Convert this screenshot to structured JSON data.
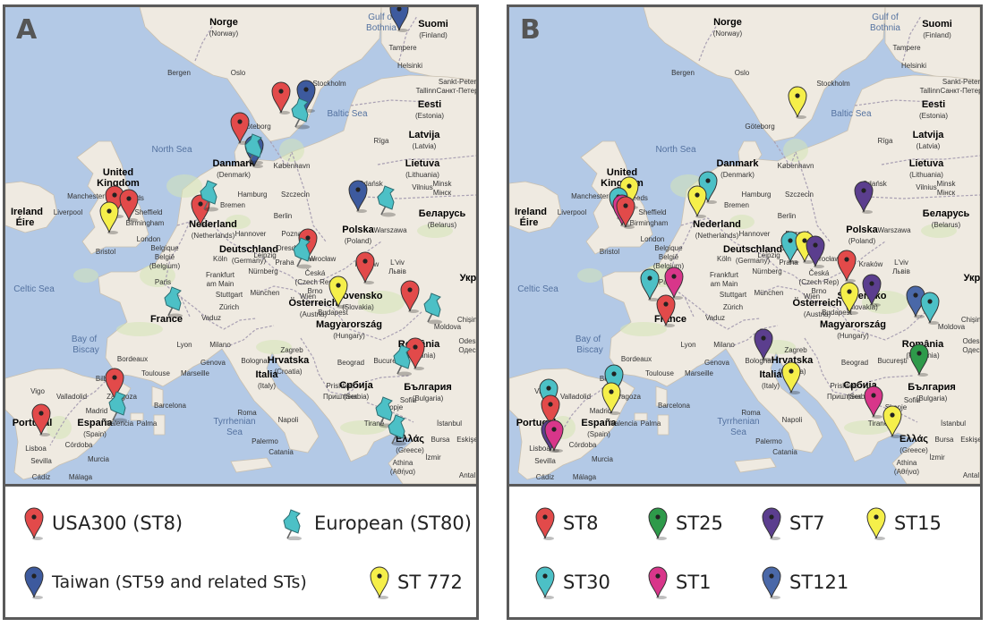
{
  "colors": {
    "sea": "#b3c9e6",
    "land": "#efeae1",
    "border": "#a9a0b3",
    "red": "#e24a4a",
    "blue": "#3d5a9e",
    "teal": "#4cc0c6",
    "yellow": "#f5ef4a",
    "green": "#2e9a4a",
    "purple": "#5b3e8e",
    "magenta": "#d8368a",
    "slate": "#4a68a8"
  },
  "map_labels": [
    {
      "t": "Norge"
    },
    {
      "t": "(Norway)"
    },
    {
      "t": "Gulf of"
    },
    {
      "t": "Bothnia"
    },
    {
      "t": "Suomi"
    },
    {
      "t": "(Finland)"
    },
    {
      "t": "Tampere"
    },
    {
      "t": "Helsinki"
    },
    {
      "t": "Bergen"
    },
    {
      "t": "Oslo"
    },
    {
      "t": "Stockholm"
    },
    {
      "t": "Tallinn"
    },
    {
      "t": "Sankt-Peter"
    },
    {
      "t": "Санкт-Петер"
    },
    {
      "t": "Eesti"
    },
    {
      "t": "(Estonia)"
    },
    {
      "t": "Göteborg"
    },
    {
      "t": "Baltic Sea"
    },
    {
      "t": "Rīga"
    },
    {
      "t": "Latvija"
    },
    {
      "t": "(Latvia)"
    },
    {
      "t": "North Sea"
    },
    {
      "t": "Danmark"
    },
    {
      "t": "(Denmark)"
    },
    {
      "t": "København"
    },
    {
      "t": "Lietuva"
    },
    {
      "t": "(Lithuania)"
    },
    {
      "t": "Vilnius"
    },
    {
      "t": "United"
    },
    {
      "t": "Kingdom"
    },
    {
      "t": "Gdańsk"
    },
    {
      "t": "Minsk"
    },
    {
      "t": "Мінск"
    },
    {
      "t": "Manchester"
    },
    {
      "t": "Leeds"
    },
    {
      "t": "Liverpool"
    },
    {
      "t": "Sheffield"
    },
    {
      "t": "Ireland"
    },
    {
      "t": "Éire"
    },
    {
      "t": "Birmingham"
    },
    {
      "t": "Bremen"
    },
    {
      "t": "Hamburg"
    },
    {
      "t": "Szczecin"
    },
    {
      "t": "Nederland"
    },
    {
      "t": "(Netherlands)"
    },
    {
      "t": "Berlin"
    },
    {
      "t": "Hannover"
    },
    {
      "t": "Poznań"
    },
    {
      "t": "Polska"
    },
    {
      "t": "(Poland)"
    },
    {
      "t": "Warszawa"
    },
    {
      "t": "Беларусь"
    },
    {
      "t": "(Belarus)"
    },
    {
      "t": "Bristol"
    },
    {
      "t": "London"
    },
    {
      "t": "Belgique"
    },
    {
      "t": "België"
    },
    {
      "t": "(Belgium)"
    },
    {
      "t": "Deutschland"
    },
    {
      "t": "(Germany)"
    },
    {
      "t": "Leipzig"
    },
    {
      "t": "Wrocław"
    },
    {
      "t": "Köln"
    },
    {
      "t": "Dresden"
    },
    {
      "t": "Celtic Sea"
    },
    {
      "t": "Paris"
    },
    {
      "t": "Frankfurt"
    },
    {
      "t": "am Main"
    },
    {
      "t": "Praha"
    },
    {
      "t": "Kraków"
    },
    {
      "t": "L'viv"
    },
    {
      "t": "Львів"
    },
    {
      "t": "Nürnberg"
    },
    {
      "t": "Česká"
    },
    {
      "t": "(Czech Rep)"
    },
    {
      "t": "Brno"
    },
    {
      "t": "Stuttgart"
    },
    {
      "t": "Slovensko"
    },
    {
      "t": "(Slovakia)"
    },
    {
      "t": "Укра"
    },
    {
      "t": "München"
    },
    {
      "t": "Wien"
    },
    {
      "t": "Österreich"
    },
    {
      "t": "(Austria)"
    },
    {
      "t": "France"
    },
    {
      "t": "Zürich"
    },
    {
      "t": "Vaduz"
    },
    {
      "t": "Budapest"
    },
    {
      "t": "Magyarország"
    },
    {
      "t": "(Hungary)"
    },
    {
      "t": "Moldova"
    },
    {
      "t": "Chișin"
    },
    {
      "t": "Bay of"
    },
    {
      "t": "Biscay"
    },
    {
      "t": "Lyon"
    },
    {
      "t": "Milano"
    },
    {
      "t": "Zagreb"
    },
    {
      "t": "Hrvatska"
    },
    {
      "t": "(Croatia)"
    },
    {
      "t": "România"
    },
    {
      "t": "(Romania)"
    },
    {
      "t": "Odes"
    },
    {
      "t": "Одес"
    },
    {
      "t": "Bordeaux"
    },
    {
      "t": "Genova"
    },
    {
      "t": "Bologna"
    },
    {
      "t": "Bucureşti"
    },
    {
      "t": "Toulouse"
    },
    {
      "t": "Marseille"
    },
    {
      "t": "Italia"
    },
    {
      "t": "(Italy)"
    },
    {
      "t": "Beograd"
    },
    {
      "t": "Србија"
    },
    {
      "t": "(Serbia)"
    },
    {
      "t": "България"
    },
    {
      "t": "(Bulgaria)"
    },
    {
      "t": "Bilbao"
    },
    {
      "t": "Vigo"
    },
    {
      "t": "Valladolid"
    },
    {
      "t": "Zaragoza"
    },
    {
      "t": "Barcelona"
    },
    {
      "t": "Roma"
    },
    {
      "t": "Prishtinë"
    },
    {
      "t": "Приштина"
    },
    {
      "t": "Sofia"
    },
    {
      "t": "Portugal"
    },
    {
      "t": "Madrid"
    },
    {
      "t": "España"
    },
    {
      "t": "(Spain)"
    },
    {
      "t": "Napoli"
    },
    {
      "t": "Skopje"
    },
    {
      "t": "Tiranë"
    },
    {
      "t": "İstanbul"
    },
    {
      "t": "Lisboa"
    },
    {
      "t": "Valencia"
    },
    {
      "t": "Palma"
    },
    {
      "t": "Tyrrhenian"
    },
    {
      "t": "Sea"
    },
    {
      "t": "Bursa"
    },
    {
      "t": "Eskişe"
    },
    {
      "t": "Córdoba"
    },
    {
      "t": "Sevilla"
    },
    {
      "t": "Murcia"
    },
    {
      "t": "Palermo"
    },
    {
      "t": "Ελλάς"
    },
    {
      "t": "(Greece)"
    },
    {
      "t": "İzmir"
    },
    {
      "t": "Catania"
    },
    {
      "t": "Athina"
    },
    {
      "t": "(Αθήνα)"
    },
    {
      "t": "Málaga"
    },
    {
      "t": "Cádiz"
    },
    {
      "t": "Antal"
    }
  ],
  "panel_a": {
    "letter": "A",
    "markers": [
      {
        "type": "USA300 (ST8)",
        "color": "red"
      },
      {
        "type": "USA300 (ST8)",
        "color": "red"
      },
      {
        "type": "USA300 (ST8)",
        "color": "red"
      },
      {
        "type": "USA300 (ST8)",
        "color": "red"
      },
      {
        "type": "USA300 (ST8)",
        "color": "red"
      },
      {
        "type": "USA300 (ST8)",
        "color": "red"
      },
      {
        "type": "USA300 (ST8)",
        "color": "red"
      },
      {
        "type": "USA300 (ST8)",
        "color": "red"
      },
      {
        "type": "USA300 (ST8)",
        "color": "red"
      },
      {
        "type": "USA300 (ST8)",
        "color": "red"
      },
      {
        "type": "USA300 (ST8)",
        "color": "red"
      },
      {
        "type": "Taiwan (ST59 and related STs)",
        "color": "blue"
      },
      {
        "type": "Taiwan (ST59 and related STs)",
        "color": "blue"
      },
      {
        "type": "Taiwan (ST59 and related STs)",
        "color": "blue"
      },
      {
        "type": "Taiwan (ST59 and related STs)",
        "color": "blue"
      },
      {
        "type": "ST 772",
        "color": "yellow"
      },
      {
        "type": "ST 772",
        "color": "yellow"
      },
      {
        "type": "European (ST80)",
        "color": "teal",
        "pin": true
      },
      {
        "type": "European (ST80)",
        "color": "teal",
        "pin": true
      },
      {
        "type": "European (ST80)",
        "color": "teal",
        "pin": true
      },
      {
        "type": "European (ST80)",
        "color": "teal",
        "pin": true
      },
      {
        "type": "European (ST80)",
        "color": "teal",
        "pin": true
      },
      {
        "type": "European (ST80)",
        "color": "teal",
        "pin": true
      },
      {
        "type": "European (ST80)",
        "color": "teal",
        "pin": true
      },
      {
        "type": "European (ST80)",
        "color": "teal",
        "pin": true
      },
      {
        "type": "European (ST80)",
        "color": "teal",
        "pin": true
      },
      {
        "type": "European (ST80)",
        "color": "teal",
        "pin": true
      },
      {
        "type": "European (ST80)",
        "color": "teal",
        "pin": true
      }
    ],
    "legend": [
      {
        "label": "USA300 (ST8)",
        "color": "red"
      },
      {
        "label": "European (ST80)",
        "color": "teal",
        "pin": true
      },
      {
        "label": "Taiwan (ST59 and related STs)",
        "color": "blue"
      },
      {
        "label": "ST 772",
        "color": "yellow"
      }
    ]
  },
  "panel_b": {
    "letter": "B",
    "markers": [
      {
        "type": "ST15",
        "color": "yellow"
      },
      {
        "type": "ST30",
        "color": "teal"
      },
      {
        "type": "ST15",
        "color": "yellow"
      },
      {
        "type": "ST15",
        "color": "yellow"
      },
      {
        "type": "ST30",
        "color": "teal"
      },
      {
        "type": "ST1",
        "color": "magenta"
      },
      {
        "type": "ST8",
        "color": "red"
      },
      {
        "type": "ST7",
        "color": "purple"
      },
      {
        "type": "ST30",
        "color": "teal"
      },
      {
        "type": "ST15",
        "color": "yellow"
      },
      {
        "type": "ST7",
        "color": "purple"
      },
      {
        "type": "ST8",
        "color": "red"
      },
      {
        "type": "ST15",
        "color": "yellow"
      },
      {
        "type": "ST7",
        "color": "purple"
      },
      {
        "type": "ST30",
        "color": "teal"
      },
      {
        "type": "ST1",
        "color": "magenta"
      },
      {
        "type": "ST8",
        "color": "red"
      },
      {
        "type": "ST121",
        "color": "slate"
      },
      {
        "type": "ST30",
        "color": "teal"
      },
      {
        "type": "ST7",
        "color": "purple"
      },
      {
        "type": "ST25",
        "color": "green"
      },
      {
        "type": "ST15",
        "color": "yellow"
      },
      {
        "type": "ST30",
        "color": "teal"
      },
      {
        "type": "ST15",
        "color": "yellow"
      },
      {
        "type": "ST30",
        "color": "teal"
      },
      {
        "type": "ST8",
        "color": "red"
      },
      {
        "type": "ST7",
        "color": "purple"
      },
      {
        "type": "ST1",
        "color": "magenta"
      },
      {
        "type": "ST1",
        "color": "magenta"
      },
      {
        "type": "ST15",
        "color": "yellow"
      }
    ],
    "legend": [
      {
        "label": "ST8",
        "color": "red"
      },
      {
        "label": "ST25",
        "color": "green"
      },
      {
        "label": "ST7",
        "color": "purple"
      },
      {
        "label": "ST15",
        "color": "yellow"
      },
      {
        "label": "ST30",
        "color": "teal"
      },
      {
        "label": "ST1",
        "color": "magenta"
      },
      {
        "label": "ST121",
        "color": "slate"
      }
    ]
  }
}
